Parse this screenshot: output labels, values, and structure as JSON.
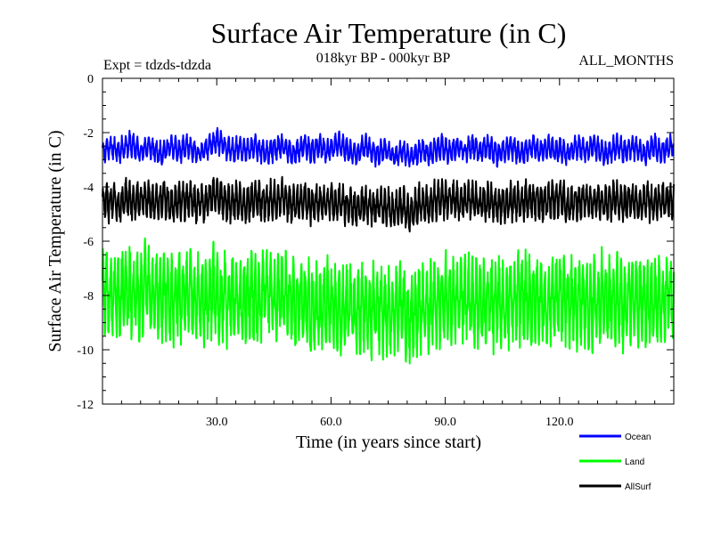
{
  "chart_data": {
    "type": "line",
    "title": "Surface Air Temperature (in C)",
    "experiment": "Expt = tdzds-tdzda",
    "period": "018kyr BP - 000kyr BP",
    "months": "ALL_MONTHS",
    "xlabel": "Time (in years since start)",
    "ylabel": "Surface Air Temperature (in C)",
    "xlim": [
      0,
      150
    ],
    "ylim": [
      -12,
      0
    ],
    "x_ticks": [
      30,
      60,
      90,
      120
    ],
    "x_tick_labels": [
      "30.0",
      "60.0",
      "90.0",
      "120.0"
    ],
    "y_ticks": [
      0,
      -2,
      -4,
      -6,
      -8,
      -10,
      -12
    ],
    "y_tick_labels": [
      "0",
      "-2",
      "-4",
      "-6",
      "-8",
      "-10",
      "-12"
    ],
    "grid": false,
    "legend_position": "bottom-right",
    "samples_per_year": 12,
    "series": [
      {
        "name": "Ocean",
        "color": "#0000ff",
        "annual_mean": [
          -2.7,
          -2.6,
          -2.5,
          -2.6,
          -2.7,
          -2.6,
          -2.5,
          -2.4,
          -2.5,
          -2.6,
          -2.7,
          -2.6,
          -2.5,
          -2.6,
          -2.7,
          -2.8,
          -2.7,
          -2.6,
          -2.5,
          -2.6,
          -2.7,
          -2.6,
          -2.5,
          -2.6,
          -2.7,
          -2.8,
          -2.7,
          -2.6,
          -2.5,
          -2.4,
          -2.3,
          -2.4,
          -2.5,
          -2.6,
          -2.7,
          -2.6,
          -2.5,
          -2.6,
          -2.7,
          -2.6,
          -2.5,
          -2.6,
          -2.7,
          -2.8,
          -2.7,
          -2.6,
          -2.6,
          -2.5,
          -2.6,
          -2.7,
          -2.8,
          -2.7,
          -2.6,
          -2.5,
          -2.6,
          -2.7,
          -2.6,
          -2.5,
          -2.6,
          -2.7,
          -2.6,
          -2.5,
          -2.4,
          -2.5,
          -2.6,
          -2.7,
          -2.8,
          -2.7,
          -2.6,
          -2.5,
          -2.6,
          -2.7,
          -2.8,
          -2.7,
          -2.6,
          -2.7,
          -2.8,
          -2.9,
          -2.8,
          -2.7,
          -2.8,
          -2.9,
          -2.8,
          -2.7,
          -2.6,
          -2.7,
          -2.8,
          -2.7,
          -2.6,
          -2.5,
          -2.6,
          -2.7,
          -2.6,
          -2.5,
          -2.6,
          -2.7,
          -2.6,
          -2.5,
          -2.6,
          -2.7,
          -2.6,
          -2.5,
          -2.6,
          -2.7,
          -2.8,
          -2.7,
          -2.6,
          -2.5,
          -2.6,
          -2.7,
          -2.8,
          -2.7,
          -2.6,
          -2.5,
          -2.6,
          -2.7,
          -2.6,
          -2.5,
          -2.6,
          -2.7,
          -2.6,
          -2.7,
          -2.8,
          -2.7,
          -2.6,
          -2.5,
          -2.6,
          -2.7,
          -2.6,
          -2.5,
          -2.6,
          -2.7,
          -2.8,
          -2.7,
          -2.6,
          -2.5,
          -2.6,
          -2.7,
          -2.6,
          -2.5,
          -2.6,
          -2.7,
          -2.8,
          -2.7,
          -2.6,
          -2.5,
          -2.6,
          -2.7,
          -2.6,
          -2.5
        ],
        "seasonal_amplitude": 0.35
      },
      {
        "name": "Land",
        "color": "#00ff00",
        "annual_mean": [
          -8.0,
          -7.8,
          -8.1,
          -7.9,
          -8.2,
          -8.0,
          -7.7,
          -7.9,
          -8.1,
          -7.8,
          -8.0,
          -7.6,
          -7.9,
          -8.2,
          -7.9,
          -8.1,
          -7.8,
          -8.0,
          -8.3,
          -8.1,
          -7.9,
          -8.2,
          -8.0,
          -7.8,
          -8.1,
          -8.0,
          -7.9,
          -8.2,
          -8.0,
          -7.8,
          -8.0,
          -8.2,
          -8.1,
          -8.3,
          -8.0,
          -8.1,
          -8.2,
          -8.4,
          -8.1,
          -8.0,
          -8.2,
          -8.1,
          -7.9,
          -8.0,
          -7.8,
          -8.1,
          -8.0,
          -7.9,
          -8.1,
          -8.2,
          -8.0,
          -8.3,
          -8.1,
          -8.2,
          -8.4,
          -8.5,
          -8.3,
          -8.6,
          -8.4,
          -8.2,
          -8.3,
          -8.5,
          -8.4,
          -8.6,
          -8.5,
          -8.3,
          -8.6,
          -8.7,
          -8.5,
          -8.4,
          -8.6,
          -8.5,
          -8.3,
          -8.4,
          -8.6,
          -8.5,
          -8.7,
          -8.6,
          -8.4,
          -8.5,
          -8.7,
          -8.8,
          -8.6,
          -8.4,
          -8.5,
          -8.3,
          -8.4,
          -8.2,
          -8.3,
          -8.1,
          -8.2,
          -8.0,
          -8.1,
          -8.3,
          -8.2,
          -8.0,
          -8.1,
          -8.3,
          -8.2,
          -8.4,
          -8.3,
          -8.1,
          -8.2,
          -8.4,
          -8.3,
          -8.5,
          -8.4,
          -8.2,
          -8.3,
          -8.1,
          -8.2,
          -8.0,
          -8.2,
          -8.3,
          -8.1,
          -8.2,
          -8.4,
          -8.3,
          -8.1,
          -8.2,
          -8.0,
          -8.1,
          -8.3,
          -8.2,
          -8.4,
          -8.3,
          -8.1,
          -8.2,
          -8.4,
          -8.3,
          -8.2,
          -8.0,
          -8.1,
          -8.3,
          -8.2,
          -8.1,
          -8.3,
          -8.4,
          -8.2,
          -8.1,
          -8.3,
          -8.2,
          -8.0,
          -8.2,
          -8.3,
          -8.1,
          -8.2,
          -8.3,
          -8.1,
          -8.0
        ],
        "seasonal_amplitude": 1.3
      },
      {
        "name": "AllSurf",
        "color": "#000000",
        "annual_mean": [
          -4.6,
          -4.5,
          -4.6,
          -4.5,
          -4.7,
          -4.6,
          -4.4,
          -4.5,
          -4.6,
          -4.4,
          -4.5,
          -4.3,
          -4.5,
          -4.6,
          -4.5,
          -4.6,
          -4.4,
          -4.5,
          -4.7,
          -4.6,
          -4.5,
          -4.6,
          -4.5,
          -4.4,
          -4.6,
          -4.6,
          -4.5,
          -4.6,
          -4.4,
          -4.3,
          -4.3,
          -4.4,
          -4.5,
          -4.6,
          -4.6,
          -4.5,
          -4.5,
          -4.7,
          -4.6,
          -4.5,
          -4.5,
          -4.5,
          -4.5,
          -4.6,
          -4.4,
          -4.5,
          -4.5,
          -4.4,
          -4.5,
          -4.6,
          -4.6,
          -4.6,
          -4.5,
          -4.5,
          -4.6,
          -4.7,
          -4.5,
          -4.6,
          -4.6,
          -4.6,
          -4.6,
          -4.6,
          -4.5,
          -4.6,
          -4.7,
          -4.6,
          -4.8,
          -4.8,
          -4.7,
          -4.6,
          -4.7,
          -4.7,
          -4.7,
          -4.7,
          -4.7,
          -4.7,
          -4.9,
          -4.9,
          -4.7,
          -4.7,
          -4.9,
          -5.0,
          -4.8,
          -4.6,
          -4.6,
          -4.6,
          -4.7,
          -4.5,
          -4.5,
          -4.4,
          -4.5,
          -4.5,
          -4.5,
          -4.5,
          -4.5,
          -4.5,
          -4.5,
          -4.5,
          -4.5,
          -4.7,
          -4.6,
          -4.5,
          -4.5,
          -4.7,
          -4.7,
          -4.7,
          -4.6,
          -4.5,
          -4.6,
          -4.5,
          -4.6,
          -4.5,
          -4.5,
          -4.5,
          -4.5,
          -4.6,
          -4.6,
          -4.5,
          -4.5,
          -4.6,
          -4.4,
          -4.5,
          -4.7,
          -4.6,
          -4.6,
          -4.5,
          -4.5,
          -4.5,
          -4.6,
          -4.5,
          -4.5,
          -4.5,
          -4.6,
          -4.6,
          -4.5,
          -4.4,
          -4.6,
          -4.7,
          -4.5,
          -4.5,
          -4.6,
          -4.6,
          -4.5,
          -4.5,
          -4.6,
          -4.6,
          -4.5,
          -4.5,
          -4.5,
          -4.5
        ],
        "seasonal_amplitude": 0.55
      }
    ]
  }
}
